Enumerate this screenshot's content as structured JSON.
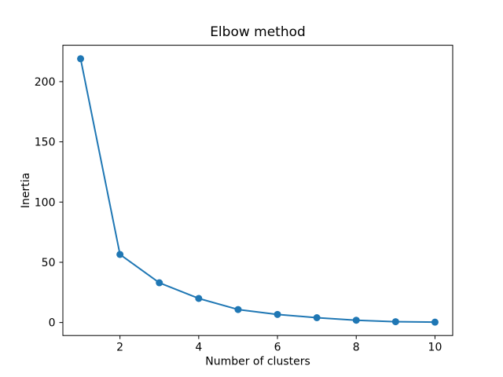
{
  "chart_data": {
    "type": "line",
    "title": "Elbow method",
    "xlabel": "Number of clusters",
    "ylabel": "Inertia",
    "x": [
      1,
      2,
      3,
      4,
      5,
      6,
      7,
      8,
      9,
      10
    ],
    "values": [
      219,
      56.5,
      33,
      20,
      10.8,
      6.7,
      4.0,
      1.9,
      0.7,
      0.3
    ],
    "series": [
      {
        "name": "inertia",
        "values": [
          219,
          56.5,
          33,
          20,
          10.8,
          6.7,
          4.0,
          1.9,
          0.7,
          0.3
        ]
      }
    ],
    "xticks": [
      2,
      4,
      6,
      8,
      10
    ],
    "yticks": [
      0,
      50,
      100,
      150,
      200
    ],
    "xlim": [
      0.55,
      10.45
    ],
    "ylim": [
      -10.8,
      230.2
    ],
    "grid": false,
    "legend_position": "none",
    "line_color": "#1f77b4",
    "marker": "o",
    "background_color": "#ffffff",
    "spine_color": "#000000"
  }
}
